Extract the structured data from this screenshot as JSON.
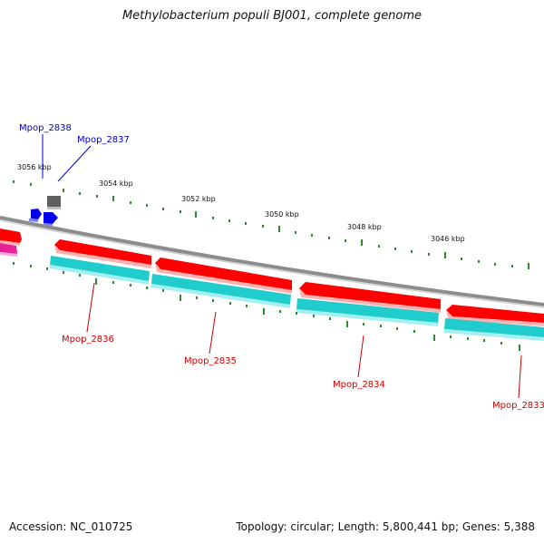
{
  "title": "Methylobacterium populi BJ001, complete genome",
  "accession": "Accession: NC_010725",
  "summary": "Topology: circular; Length: 5,800,441 bp; Genes: 5,388",
  "scale_labels": [
    "3056 kbp",
    "3054 kbp",
    "3052 kbp",
    "3050 kbp",
    "3048 kbp",
    "3046 kbp"
  ],
  "genes_top": [
    {
      "label": "Mpop_2838"
    },
    {
      "label": "Mpop_2837"
    }
  ],
  "genes_bottom": [
    {
      "label": "Mpop_2836"
    },
    {
      "label": "Mpop_2835"
    },
    {
      "label": "Mpop_2834"
    },
    {
      "label": "Mpop_2833"
    }
  ],
  "colors": {
    "backbone": "#8c8c8c",
    "cds": "#ff0000",
    "gene": "#20cccc",
    "small_gene": "#0000ff",
    "other_feature": "#666666",
    "pink_feature": "#e8209a",
    "tick": "#2e8a2e",
    "label_top": "#0000cc",
    "label_bottom": "#cc0000"
  }
}
